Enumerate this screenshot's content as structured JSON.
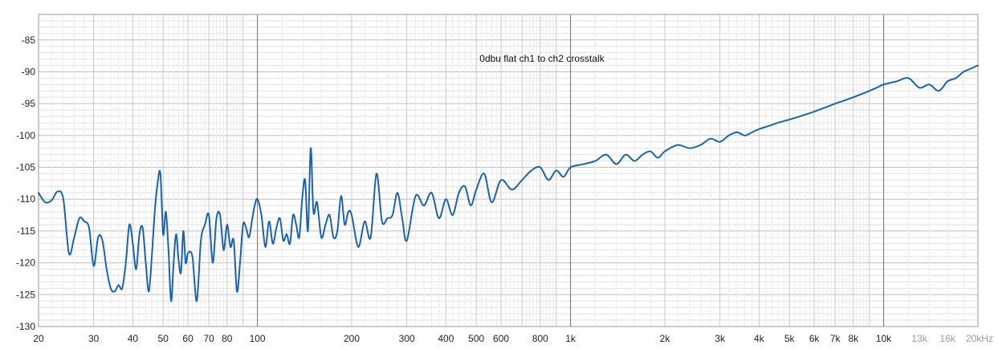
{
  "chart_data": {
    "type": "line",
    "title": "0dbu flat ch1 to ch2 crosstalk",
    "xlabel": "",
    "ylabel": "",
    "x_scale": "log",
    "xlim": [
      20,
      20000
    ],
    "ylim": [
      -130,
      -81
    ],
    "grid": true,
    "y_ticks": [
      -85,
      -90,
      -95,
      -100,
      -105,
      -110,
      -115,
      -120,
      -125,
      -130
    ],
    "y_tick_labels": [
      "-85",
      "-90",
      "-95",
      "-100",
      "-105",
      "-110",
      "-115",
      "-120",
      "-125",
      "-130"
    ],
    "x_ticks": [
      20,
      30,
      40,
      50,
      60,
      70,
      80,
      100,
      200,
      300,
      400,
      500,
      600,
      800,
      1000,
      2000,
      3000,
      4000,
      5000,
      6000,
      7000,
      8000,
      10000,
      13000,
      16000,
      20000
    ],
    "x_tick_labels": [
      "20",
      "30",
      "40",
      "50",
      "60",
      "70",
      "80",
      "100",
      "200",
      "300",
      "400",
      "500",
      "600",
      "800",
      "1k",
      "2k",
      "3k",
      "4k",
      "5k",
      "6k",
      "7k",
      "8k",
      "10k",
      "13k",
      "16k",
      "20kHz"
    ],
    "x_tick_dim": [
      "13k",
      "16k",
      "20kHz"
    ],
    "series": [
      {
        "color": "#1f63a7",
        "x": [
          20,
          21,
          22,
          23,
          24,
          25,
          26,
          27,
          28,
          29,
          30,
          31,
          32,
          33,
          34,
          35,
          36,
          37,
          38,
          39,
          40,
          41,
          42,
          43,
          44,
          45,
          46,
          47,
          48,
          49,
          50,
          51,
          52,
          53,
          54,
          55,
          56,
          57,
          58,
          59,
          60,
          62,
          64,
          66,
          68,
          70,
          72,
          74,
          76,
          78,
          80,
          82,
          84,
          86,
          88,
          90,
          92,
          94,
          96,
          98,
          100,
          103,
          106,
          109,
          112,
          115,
          118,
          121,
          124,
          127,
          130,
          133,
          136,
          139,
          142,
          145,
          148,
          151,
          155,
          160,
          165,
          170,
          175,
          180,
          185,
          190,
          195,
          200,
          210,
          220,
          230,
          240,
          250,
          260,
          270,
          280,
          290,
          300,
          320,
          340,
          360,
          380,
          400,
          420,
          440,
          460,
          480,
          500,
          530,
          560,
          600,
          650,
          700,
          750,
          800,
          850,
          900,
          950,
          1000,
          1100,
          1200,
          1300,
          1400,
          1500,
          1600,
          1700,
          1800,
          1900,
          2000,
          2200,
          2400,
          2600,
          2800,
          3000,
          3200,
          3400,
          3600,
          3800,
          4000,
          4300,
          4600,
          5000,
          5400,
          5800,
          6200,
          6600,
          7000,
          7500,
          8000,
          8500,
          9000,
          9500,
          10000,
          11000,
          12000,
          13000,
          14000,
          15000,
          16000,
          17000,
          18000,
          19000,
          20000
        ],
        "values": [
          -109.0,
          -110.5,
          -110.2,
          -108.8,
          -110.0,
          -118.5,
          -116.0,
          -113.0,
          -113.5,
          -114.5,
          -120.5,
          -116.0,
          -116.5,
          -121.0,
          -124.0,
          -124.5,
          -123.5,
          -124.0,
          -120.0,
          -114.0,
          -117.0,
          -121.0,
          -115.5,
          -114.5,
          -120.0,
          -124.5,
          -119.0,
          -112.0,
          -107.5,
          -106.0,
          -115.5,
          -112.0,
          -118.0,
          -126.0,
          -120.0,
          -115.5,
          -119.5,
          -121.5,
          -115.0,
          -120.0,
          -118.5,
          -119.0,
          -126.0,
          -116.5,
          -114.0,
          -112.5,
          -120.0,
          -113.0,
          -112.5,
          -118.0,
          -114.0,
          -117.5,
          -116.5,
          -124.5,
          -120.0,
          -114.0,
          -114.5,
          -116.0,
          -113.5,
          -111.0,
          -110.0,
          -112.5,
          -117.5,
          -113.5,
          -117.0,
          -114.5,
          -113.0,
          -116.5,
          -115.5,
          -117.0,
          -112.5,
          -114.0,
          -116.0,
          -110.0,
          -107.0,
          -115.0,
          -102.0,
          -112.0,
          -110.5,
          -116.0,
          -114.0,
          -112.5,
          -116.0,
          -115.0,
          -109.5,
          -114.0,
          -112.0,
          -112.5,
          -117.5,
          -113.5,
          -116.0,
          -106.0,
          -113.5,
          -113.0,
          -112.5,
          -109.0,
          -113.0,
          -116.5,
          -109.5,
          -111.0,
          -109.0,
          -113.0,
          -110.0,
          -112.5,
          -109.0,
          -108.0,
          -111.0,
          -108.5,
          -106.0,
          -110.5,
          -107.0,
          -108.5,
          -107.0,
          -105.5,
          -105.0,
          -107.0,
          -105.5,
          -106.5,
          -105.0,
          -104.5,
          -104.0,
          -103.0,
          -104.5,
          -103.0,
          -104.0,
          -103.0,
          -102.5,
          -103.5,
          -102.5,
          -101.5,
          -102.0,
          -101.5,
          -100.5,
          -101.0,
          -100.0,
          -99.5,
          -100.0,
          -99.5,
          -99.0,
          -98.5,
          -98.0,
          -97.5,
          -97.0,
          -96.5,
          -96.0,
          -95.5,
          -95.0,
          -94.5,
          -94.0,
          -93.5,
          -93.0,
          -92.5,
          -92.0,
          -91.5,
          -91.0,
          -92.5,
          -92.0,
          -93.0,
          -91.5,
          -91.0,
          -90.0,
          -89.5,
          -89.0
        ]
      }
    ]
  }
}
